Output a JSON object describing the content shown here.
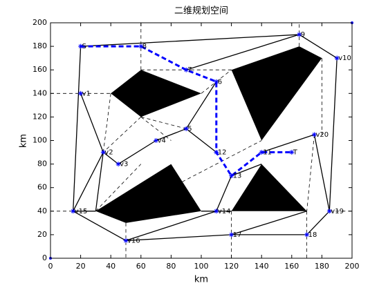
{
  "chart_data": {
    "type": "line",
    "title": "二维规划空间",
    "xlabel": "km",
    "ylabel": "km",
    "xlim": [
      0,
      200
    ],
    "ylim": [
      0,
      200
    ],
    "xticks": [
      0,
      20,
      40,
      60,
      80,
      100,
      120,
      140,
      160,
      180,
      200
    ],
    "yticks": [
      0,
      20,
      40,
      60,
      80,
      100,
      120,
      140,
      160,
      180,
      200
    ],
    "obstacle_color": "#000000",
    "obstacles": [
      {
        "x": [
          40,
          60,
          100,
          60
        ],
        "y": [
          140,
          160,
          140,
          120
        ]
      },
      {
        "x": [
          120,
          165,
          180,
          140
        ],
        "y": [
          160,
          180,
          170,
          100
        ]
      },
      {
        "x": [
          30,
          50,
          100,
          80
        ],
        "y": [
          40,
          30,
          40,
          80
        ]
      },
      {
        "x": [
          120,
          140,
          170
        ],
        "y": [
          40,
          80,
          40
        ]
      }
    ],
    "solid_edges": [
      {
        "x": [
          20,
          165
        ],
        "y": [
          180,
          190
        ]
      },
      {
        "x": [
          165,
          190
        ],
        "y": [
          190,
          170
        ]
      },
      {
        "x": [
          190,
          185
        ],
        "y": [
          170,
          40
        ]
      },
      {
        "x": [
          20,
          15
        ],
        "y": [
          180,
          40
        ]
      },
      {
        "x": [
          20,
          35
        ],
        "y": [
          140,
          90
        ]
      },
      {
        "x": [
          35,
          45
        ],
        "y": [
          90,
          80
        ]
      },
      {
        "x": [
          35,
          15
        ],
        "y": [
          90,
          40
        ]
      },
      {
        "x": [
          35,
          30
        ],
        "y": [
          90,
          40
        ]
      },
      {
        "x": [
          45,
          70
        ],
        "y": [
          80,
          100
        ]
      },
      {
        "x": [
          70,
          90
        ],
        "y": [
          100,
          110
        ]
      },
      {
        "x": [
          90,
          110
        ],
        "y": [
          110,
          150
        ]
      },
      {
        "x": [
          90,
          110
        ],
        "y": [
          110,
          90
        ]
      },
      {
        "x": [
          90,
          165
        ],
        "y": [
          160,
          190
        ]
      },
      {
        "x": [
          120,
          110
        ],
        "y": [
          70,
          40
        ]
      },
      {
        "x": [
          15,
          50
        ],
        "y": [
          40,
          15
        ]
      },
      {
        "x": [
          50,
          110
        ],
        "y": [
          15,
          40
        ]
      },
      {
        "x": [
          50,
          120
        ],
        "y": [
          15,
          20
        ]
      },
      {
        "x": [
          120,
          170
        ],
        "y": [
          20,
          40
        ]
      },
      {
        "x": [
          120,
          170
        ],
        "y": [
          20,
          20
        ]
      },
      {
        "x": [
          170,
          185
        ],
        "y": [
          20,
          40
        ]
      },
      {
        "x": [
          185,
          175
        ],
        "y": [
          40,
          105
        ]
      },
      {
        "x": [
          175,
          140
        ],
        "y": [
          105,
          90
        ]
      },
      {
        "x": [
          15,
          30
        ],
        "y": [
          40,
          40
        ]
      },
      {
        "x": [
          110,
          100
        ],
        "y": [
          40,
          40
        ]
      },
      {
        "x": [
          110,
          120
        ],
        "y": [
          40,
          40
        ]
      },
      {
        "x": [
          120,
          140
        ],
        "y": [
          70,
          80
        ]
      }
    ],
    "dashed_edges": [
      {
        "x": [
          60,
          60
        ],
        "y": [
          200,
          160
        ]
      },
      {
        "x": [
          60,
          120
        ],
        "y": [
          160,
          160
        ]
      },
      {
        "x": [
          0,
          40
        ],
        "y": [
          140,
          140
        ]
      },
      {
        "x": [
          50,
          50
        ],
        "y": [
          30,
          0
        ]
      },
      {
        "x": [
          170,
          170
        ],
        "y": [
          40,
          0
        ]
      },
      {
        "x": [
          120,
          120
        ],
        "y": [
          40,
          0
        ]
      },
      {
        "x": [
          165,
          165
        ],
        "y": [
          180,
          200
        ]
      },
      {
        "x": [
          185,
          200
        ],
        "y": [
          40,
          40
        ]
      },
      {
        "x": [
          0,
          15
        ],
        "y": [
          40,
          40
        ]
      },
      {
        "x": [
          175,
          170
        ],
        "y": [
          105,
          40
        ]
      },
      {
        "x": [
          60,
          90
        ],
        "y": [
          120,
          110
        ]
      },
      {
        "x": [
          40,
          35
        ],
        "y": [
          140,
          90
        ]
      },
      {
        "x": [
          60,
          35
        ],
        "y": [
          120,
          90
        ]
      },
      {
        "x": [
          60,
          80
        ],
        "y": [
          120,
          100
        ]
      },
      {
        "x": [
          80,
          140
        ],
        "y": [
          60,
          100
        ]
      },
      {
        "x": [
          100,
          120
        ],
        "y": [
          140,
          160
        ]
      },
      {
        "x": [
          180,
          180
        ],
        "y": [
          170,
          105
        ]
      },
      {
        "x": [
          30,
          60
        ],
        "y": [
          40,
          80
        ]
      }
    ],
    "nodes": {
      "color": "#0000ff",
      "x": [
        20,
        60,
        165,
        190,
        90,
        110,
        20,
        90,
        70,
        175,
        110,
        35,
        45,
        140,
        160,
        120,
        15,
        110,
        185,
        50,
        120,
        170
      ],
      "y": [
        180,
        180,
        190,
        170,
        160,
        150,
        140,
        110,
        100,
        105,
        90,
        90,
        80,
        90,
        90,
        70,
        40,
        40,
        40,
        15,
        20,
        20
      ],
      "labels": [
        "S",
        "8",
        "9",
        "v10",
        "7",
        "6",
        "v1",
        "5",
        "v4",
        "v20",
        "12",
        "v2",
        "v3",
        "11",
        "T",
        "13",
        "v15",
        "v14",
        "v19",
        "v16",
        "17",
        "18"
      ]
    },
    "series": [
      {
        "color": "#0000ff",
        "x": [
          20,
          60,
          90,
          110,
          110,
          120,
          140,
          160
        ],
        "y": [
          180,
          180,
          160,
          150,
          90,
          70,
          90,
          90
        ]
      }
    ],
    "corners": {
      "color": "#0000ff",
      "x": [
        0,
        200
      ],
      "y": [
        0,
        200
      ]
    }
  }
}
